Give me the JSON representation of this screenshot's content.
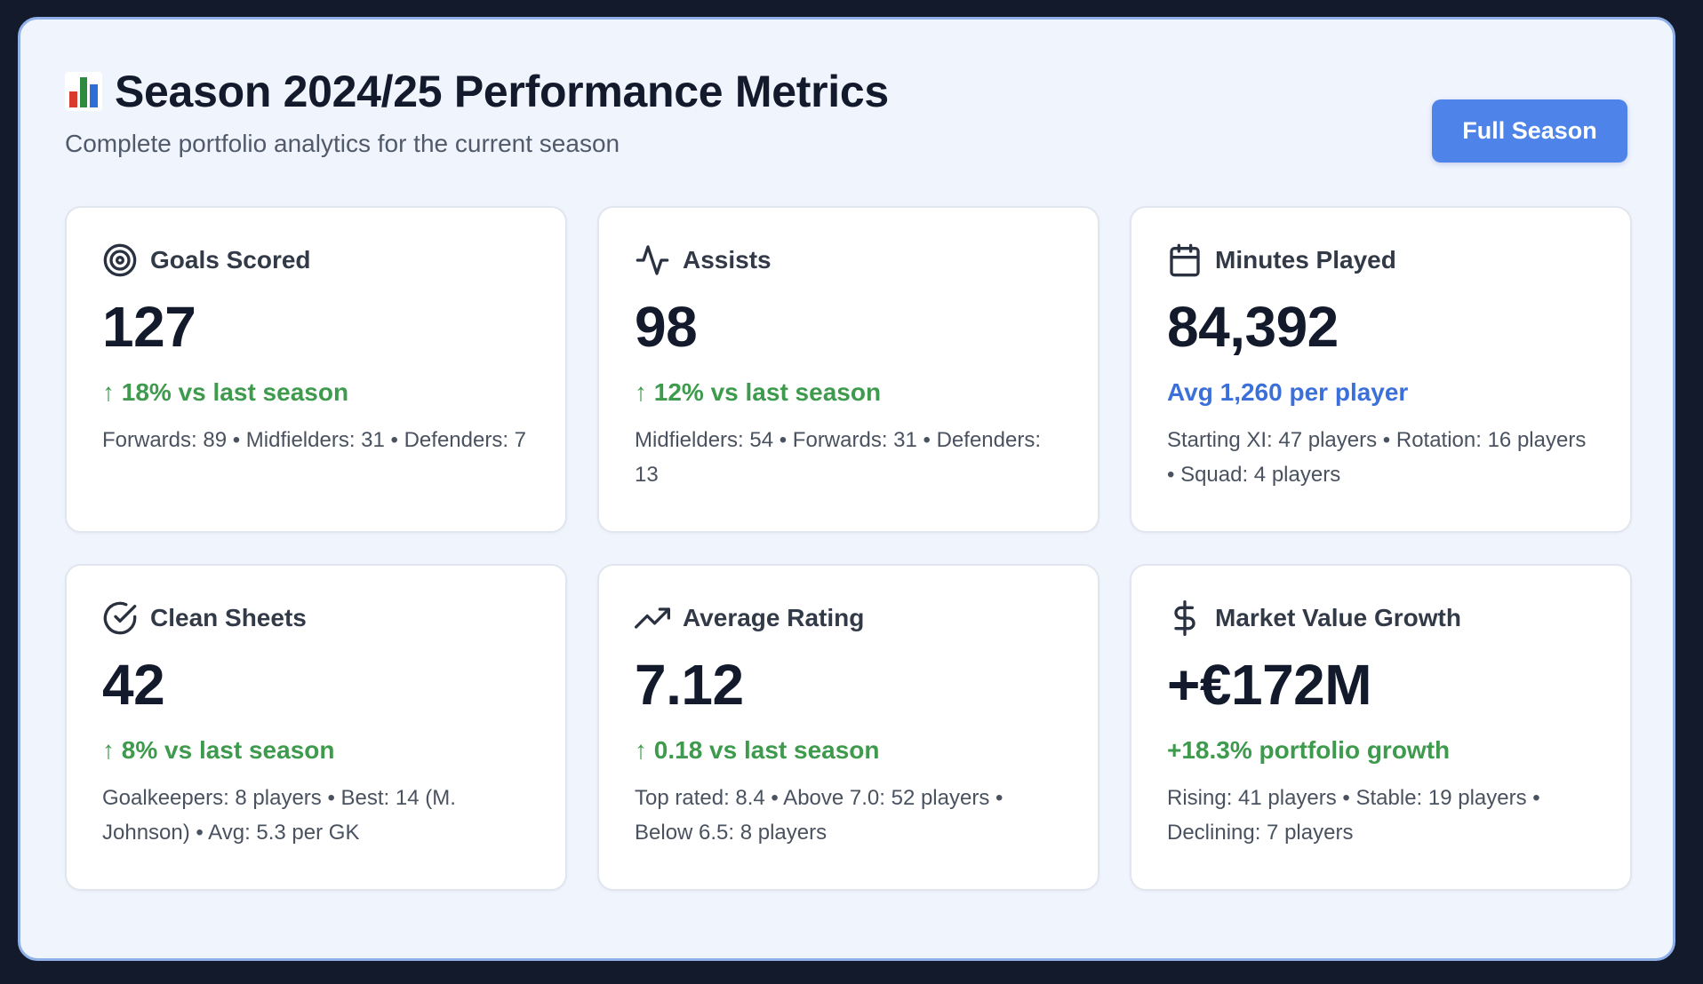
{
  "header": {
    "title": "Season 2024/25 Performance Metrics",
    "title_icon": "bar-chart-emoji-icon",
    "subtitle": "Complete portfolio analytics for the current season",
    "period_button_label": "Full Season"
  },
  "colors": {
    "accent": "#4e84ea",
    "positive": "#3e9a4c",
    "info": "#3b6fd9",
    "panel_border": "#8fb0e8",
    "background": "#121a2b"
  },
  "cards": [
    {
      "icon": "target-icon",
      "label": "Goals Scored",
      "value": "127",
      "trend": "↑ 18% vs last season",
      "trend_style": "up",
      "detail": "Forwards: 89 • Midfielders: 31 • Defenders: 7"
    },
    {
      "icon": "activity-icon",
      "label": "Assists",
      "value": "98",
      "trend": "↑ 12% vs last season",
      "trend_style": "up",
      "detail": "Midfielders: 54 • Forwards: 31 • Defenders: 13"
    },
    {
      "icon": "calendar-icon",
      "label": "Minutes Played",
      "value": "84,392",
      "trend": "Avg 1,260 per player",
      "trend_style": "info",
      "detail": "Starting XI: 47 players • Rotation: 16 players • Squad: 4 players"
    },
    {
      "icon": "check-circle-icon",
      "label": "Clean Sheets",
      "value": "42",
      "trend": "↑ 8% vs last season",
      "trend_style": "up",
      "detail": "Goalkeepers: 8 players • Best: 14 (M. Johnson) • Avg: 5.3 per GK"
    },
    {
      "icon": "trending-up-icon",
      "label": "Average Rating",
      "value": "7.12",
      "trend": "↑ 0.18 vs last season",
      "trend_style": "up",
      "detail": "Top rated: 8.4 • Above 7.0: 52 players • Below 6.5: 8 players"
    },
    {
      "icon": "dollar-sign-icon",
      "label": "Market Value Growth",
      "value": "+€172M",
      "trend": "+18.3% portfolio growth",
      "trend_style": "up",
      "detail": "Rising: 41 players • Stable: 19 players • Declining: 7 players"
    }
  ]
}
